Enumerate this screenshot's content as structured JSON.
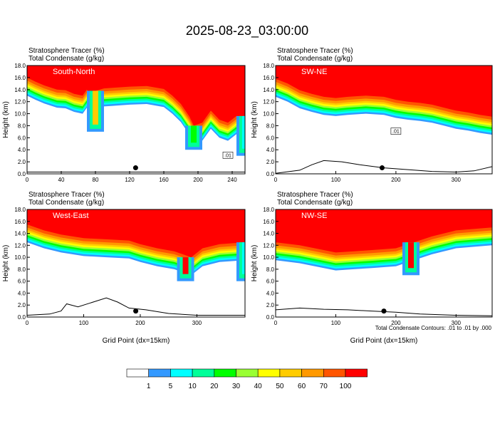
{
  "title": "2025-08-23_03:00:00",
  "chart_data": [
    {
      "type": "heatmap",
      "panel_label": "South-North",
      "header_line1": "Stratosphere Tracer   (%)",
      "header_line2": "Total Condensate   (g/kg)",
      "ylabel": "Height (km)",
      "xlabel": "",
      "xlim": [
        0,
        255
      ],
      "ylim": [
        0,
        18
      ],
      "xticks": [
        0,
        40,
        80,
        120,
        160,
        200,
        240
      ],
      "yticks": [
        "0.0",
        "2.0",
        "4.0",
        "6.0",
        "8.0",
        "10.0",
        "12.0",
        "14.0",
        "16.0",
        "18.0"
      ],
      "tracer_top_km": [
        [
          0,
          16.0
        ],
        [
          10,
          15.3
        ],
        [
          20,
          14.7
        ],
        [
          35,
          14.0
        ],
        [
          45,
          13.9
        ],
        [
          55,
          13.3
        ],
        [
          65,
          13.0
        ],
        [
          70,
          14.0
        ],
        [
          75,
          12.5
        ],
        [
          80,
          13.8
        ],
        [
          90,
          14.2
        ],
        [
          100,
          14.3
        ],
        [
          120,
          14.5
        ],
        [
          140,
          14.6
        ],
        [
          160,
          14.1
        ],
        [
          170,
          13.0
        ],
        [
          180,
          11.6
        ],
        [
          190,
          9.5
        ],
        [
          195,
          8.0
        ],
        [
          205,
          8.5
        ],
        [
          215,
          10.5
        ],
        [
          225,
          9.0
        ],
        [
          235,
          8.5
        ],
        [
          245,
          9.6
        ],
        [
          255,
          9.6
        ]
      ],
      "intrusions": [
        {
          "x": 80,
          "bottom_km": 7.0,
          "value": 60
        },
        {
          "x": 195,
          "bottom_km": 4.0,
          "value": 20
        },
        {
          "x": 255,
          "bottom_km": 3.0,
          "value": 10
        }
      ],
      "terrain_km": [
        [
          0,
          0.3
        ],
        [
          40,
          0.3
        ],
        [
          80,
          0.3
        ],
        [
          120,
          0.3
        ],
        [
          160,
          0.3
        ],
        [
          200,
          0.3
        ],
        [
          255,
          0.3
        ]
      ],
      "marker": {
        "x": 127,
        "y": 1.0
      },
      "contour_label": ".01"
    },
    {
      "type": "heatmap",
      "panel_label": "SW-NE",
      "header_line1": "Stratosphere Tracer   (%)",
      "header_line2": "Total Condensate   (g/kg)",
      "ylabel": "Height (km)",
      "xlabel": "",
      "xlim": [
        0,
        360
      ],
      "ylim": [
        0,
        18
      ],
      "xticks": [
        0,
        100,
        200,
        300
      ],
      "yticks": [
        "0.0",
        "2.0",
        "4.0",
        "6.0",
        "8.0",
        "10.0",
        "12.0",
        "14.0",
        "16.0",
        "18.0"
      ],
      "tracer_top_km": [
        [
          0,
          15.8
        ],
        [
          20,
          15.0
        ],
        [
          40,
          13.9
        ],
        [
          60,
          13.3
        ],
        [
          80,
          12.8
        ],
        [
          100,
          12.6
        ],
        [
          120,
          12.8
        ],
        [
          150,
          13.0
        ],
        [
          180,
          12.8
        ],
        [
          200,
          12.3
        ],
        [
          220,
          12.0
        ],
        [
          240,
          11.8
        ],
        [
          260,
          11.5
        ],
        [
          280,
          11.0
        ],
        [
          300,
          10.5
        ],
        [
          320,
          10.2
        ],
        [
          340,
          9.8
        ],
        [
          360,
          9.5
        ]
      ],
      "intrusions": [],
      "terrain_km": [
        [
          0,
          0.1
        ],
        [
          40,
          0.6
        ],
        [
          60,
          1.5
        ],
        [
          80,
          2.2
        ],
        [
          110,
          2.0
        ],
        [
          140,
          1.5
        ],
        [
          180,
          1.0
        ],
        [
          220,
          0.7
        ],
        [
          260,
          0.4
        ],
        [
          300,
          0.3
        ],
        [
          330,
          0.5
        ],
        [
          360,
          1.2
        ]
      ],
      "marker": {
        "x": 177,
        "y": 1.0
      },
      "contour_label": ".01"
    },
    {
      "type": "heatmap",
      "panel_label": "West-East",
      "header_line1": "Stratosphere Tracer   (%)",
      "header_line2": "Total Condensate   (g/kg)",
      "ylabel": "Height (km)",
      "xlabel": "Grid Point (dx=15km)",
      "xlim": [
        0,
        385
      ],
      "ylim": [
        0,
        18
      ],
      "xticks": [
        0,
        100,
        200,
        300
      ],
      "yticks": [
        "0.0",
        "2.0",
        "4.0",
        "6.0",
        "8.0",
        "10.0",
        "12.0",
        "14.0",
        "16.0",
        "18.0"
      ],
      "tracer_top_km": [
        [
          0,
          15.5
        ],
        [
          30,
          14.5
        ],
        [
          60,
          13.8
        ],
        [
          100,
          13.2
        ],
        [
          140,
          13.0
        ],
        [
          180,
          12.8
        ],
        [
          200,
          12.2
        ],
        [
          230,
          11.5
        ],
        [
          260,
          11.0
        ],
        [
          290,
          10.0
        ],
        [
          310,
          11.5
        ],
        [
          340,
          12.2
        ],
        [
          385,
          12.5
        ]
      ],
      "intrusions": [
        {
          "x": 280,
          "bottom_km": 6.0,
          "value": 70
        },
        {
          "x": 385,
          "bottom_km": 6.0,
          "value": 10
        }
      ],
      "terrain_km": [
        [
          0,
          0.3
        ],
        [
          40,
          0.5
        ],
        [
          60,
          1.0
        ],
        [
          70,
          2.2
        ],
        [
          90,
          1.7
        ],
        [
          110,
          2.3
        ],
        [
          140,
          3.2
        ],
        [
          160,
          2.5
        ],
        [
          180,
          1.5
        ],
        [
          210,
          1.2
        ],
        [
          250,
          0.6
        ],
        [
          300,
          0.3
        ],
        [
          385,
          0.3
        ]
      ],
      "marker": {
        "x": 192,
        "y": 1.0
      },
      "contour_label": ""
    },
    {
      "type": "heatmap",
      "panel_label": "NW-SE",
      "header_line1": "Stratosphere Tracer   (%)",
      "header_line2": "Total Condensate   (g/kg)",
      "ylabel": "Height (km)",
      "xlabel": "Grid Point (dx=15km)",
      "xlim": [
        0,
        360
      ],
      "ylim": [
        0,
        18
      ],
      "xticks": [
        0,
        100,
        200,
        300
      ],
      "yticks": [
        "0.0",
        "2.0",
        "4.0",
        "6.0",
        "8.0",
        "10.0",
        "12.0",
        "14.0",
        "16.0",
        "18.0"
      ],
      "tracer_top_km": [
        [
          0,
          12.5
        ],
        [
          40,
          12.0
        ],
        [
          80,
          11.2
        ],
        [
          100,
          10.8
        ],
        [
          130,
          11.0
        ],
        [
          160,
          11.2
        ],
        [
          200,
          11.5
        ],
        [
          230,
          12.5
        ],
        [
          260,
          13.5
        ],
        [
          300,
          14.5
        ],
        [
          360,
          15.0
        ]
      ],
      "intrusions": [
        {
          "x": 225,
          "bottom_km": 7.0,
          "value": 70
        }
      ],
      "terrain_km": [
        [
          0,
          1.2
        ],
        [
          40,
          1.5
        ],
        [
          80,
          1.3
        ],
        [
          120,
          1.2
        ],
        [
          160,
          1.0
        ],
        [
          200,
          0.8
        ],
        [
          240,
          0.5
        ],
        [
          300,
          0.3
        ],
        [
          360,
          0.2
        ]
      ],
      "marker": {
        "x": 180,
        "y": 1.0
      },
      "contour_label": ""
    }
  ],
  "footnote": "Total Condensate Contours: .01 to .01 by .000",
  "colorbar": {
    "labels": [
      "1",
      "5",
      "10",
      "20",
      "30",
      "40",
      "50",
      "60",
      "70",
      "100"
    ],
    "colors": [
      "#ffffff",
      "#3399ff",
      "#00ffff",
      "#00ff99",
      "#00ff00",
      "#99ff33",
      "#ffff00",
      "#ffcc00",
      "#ff9900",
      "#ff5500",
      "#ff0000"
    ]
  }
}
